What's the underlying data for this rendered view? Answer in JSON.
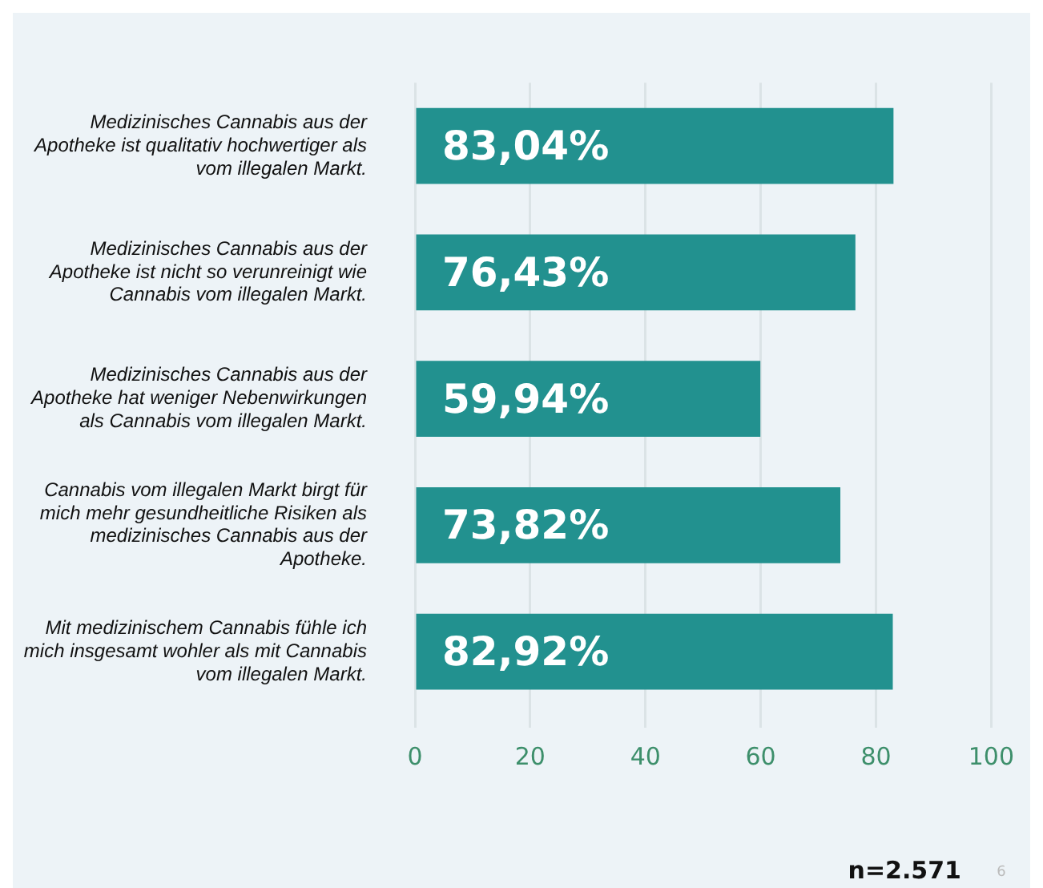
{
  "chart_data": {
    "type": "bar",
    "orientation": "horizontal",
    "categories": [
      "Medizinisches Cannabis aus der Apotheke ist qualitativ hochwertiger als vom illegalen Markt.",
      "Medizinisches Cannabis aus der Apotheke ist nicht so verunreinigt wie Cannabis vom illegalen Markt.",
      "Medizinisches Cannabis aus der Apotheke hat weniger Nebenwirkungen als Cannabis vom illegalen Markt.",
      "Cannabis vom illegalen Markt birgt für mich mehr gesundheitliche Risiken als medizinisches Cannabis aus der Apotheke.",
      "Mit medizinischem Cannabis fühle ich mich insgesamt wohler als mit Cannabis vom illegalen Markt."
    ],
    "values": [
      83.04,
      76.43,
      59.94,
      73.82,
      82.92
    ],
    "value_labels": [
      "83,04%",
      "76,43%",
      "59,94%",
      "73,82%",
      "82,92%"
    ],
    "color": "#22918f",
    "xlim": [
      0,
      100
    ],
    "xticks": [
      0,
      20,
      40,
      60,
      80,
      100
    ],
    "grid": "x",
    "legend": false,
    "annotations": [
      "n=2.571",
      "6"
    ]
  }
}
